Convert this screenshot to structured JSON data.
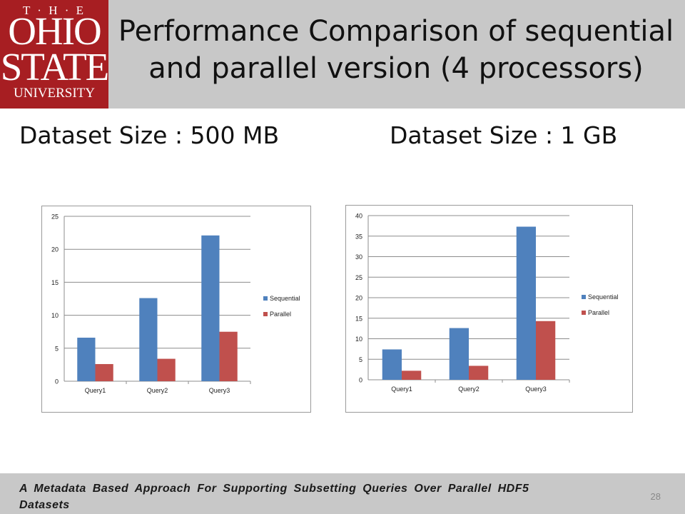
{
  "logo": {
    "line1": "T · H · E",
    "line2": "OHIO",
    "line3": "STATE",
    "line4": "UNIVERSITY"
  },
  "title_line1": "Performance Comparison of sequential",
  "title_line2": "and parallel version (4 processors)",
  "left_heading": "Dataset Size : 500 MB",
  "right_heading": "Dataset Size : 1 GB",
  "colors": {
    "sequential": "#4f81bd",
    "parallel": "#c0504d",
    "header_bg": "#c8c8c8",
    "logo_bg": "#a71e22"
  },
  "chart_data": [
    {
      "type": "bar",
      "categories": [
        "Query1",
        "Query2",
        "Query3"
      ],
      "series": [
        {
          "name": "Sequential",
          "values": [
            6.6,
            12.6,
            22.1
          ]
        },
        {
          "name": "Parallel",
          "values": [
            2.6,
            3.4,
            7.5
          ]
        }
      ],
      "ylim": [
        0,
        25
      ],
      "yticks": [
        0,
        5,
        10,
        15,
        20,
        25
      ],
      "grid": true,
      "legend": "right"
    },
    {
      "type": "bar",
      "categories": [
        "Query1",
        "Query2",
        "Query3"
      ],
      "series": [
        {
          "name": "Sequential",
          "values": [
            7.4,
            12.6,
            37.3
          ]
        },
        {
          "name": "Parallel",
          "values": [
            2.2,
            3.4,
            14.3
          ]
        }
      ],
      "ylim": [
        0,
        40
      ],
      "yticks": [
        0,
        5,
        10,
        15,
        20,
        25,
        30,
        35,
        40
      ],
      "grid": true,
      "legend": "right"
    }
  ],
  "footer": {
    "text": "A Metadata Based Approach For Supporting Subsetting Queries Over Parallel HDF5 Datasets",
    "page": "28"
  }
}
